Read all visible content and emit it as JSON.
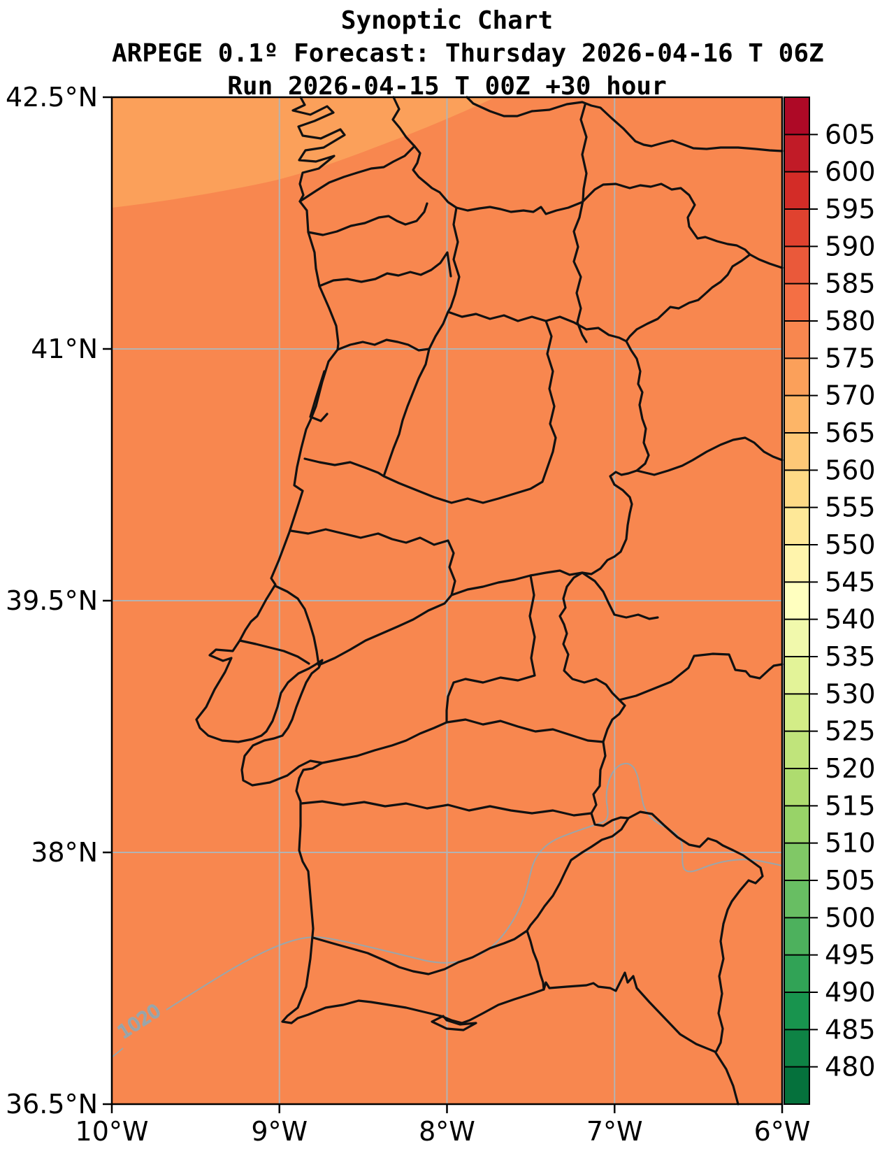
{
  "figure": {
    "title": "Synoptic Chart",
    "subtitle": "ARPEGE 0.1º Forecast: Thursday 2026-04-16 T 06Z",
    "run_info": "Run 2026-04-15 T 00Z +30 hour"
  },
  "chart_data": {
    "type": "heatmap",
    "description": "Filled-contour synoptic map of Portugal and western Spain (10W-6W, 36.5N-42.5N). Almost the whole domain lies in the 575-580 color band; a lighter 570-575 band covers the northwest corner. A gray isobar labelled 1020 arcs across the south. Black lines are coastline, Portugal-Spain border and district/province boundaries.",
    "title": "Synoptic Chart",
    "subtitle": "ARPEGE 0.1º Forecast: Thursday 2026-04-16 T 06Z",
    "run_line": "Run 2026-04-15 T 00Z +30 hour",
    "x_axis": {
      "tick_labels": [
        "10°W",
        "9°W",
        "8°W",
        "7°W",
        "6°W"
      ],
      "tick_lons": [
        -10,
        -9,
        -8,
        -7,
        -6
      ],
      "range_lon": [
        -10,
        -6
      ],
      "grid": true
    },
    "y_axis": {
      "tick_labels": [
        "42.5°N",
        "41°N",
        "39.5°N",
        "38°N",
        "36.5°N"
      ],
      "tick_lats": [
        42.5,
        41,
        39.5,
        38,
        36.5
      ],
      "range_lat": [
        36.5,
        42.5
      ],
      "grid": true
    },
    "colorbar": {
      "position": "right",
      "colormap": "RdYlGn reversed",
      "domain_min": 475,
      "domain_max": 610,
      "step": 5,
      "tick_labels": [
        605,
        600,
        595,
        590,
        585,
        580,
        575,
        570,
        565,
        560,
        555,
        550,
        545,
        540,
        535,
        530,
        525,
        520,
        515,
        510,
        505,
        500,
        495,
        490,
        485,
        480
      ]
    },
    "field_regions": [
      {
        "band": "575-580",
        "value_mid": 577.5,
        "area": "entire domain except northwest corner"
      },
      {
        "band": "570-575",
        "value_mid": 572.5,
        "area": "northwest corner of domain"
      }
    ],
    "isobars": [
      {
        "label": "1020",
        "location": "arcs across southern Portugal from lower-left edge to right edge"
      }
    ]
  },
  "colors": {
    "grid": "#b3b3b3",
    "boundary": "#111111",
    "isobar": "#9aa6ab",
    "isobar_label": "#8f9a9f",
    "frame": "#000000",
    "background": "#ffffff"
  }
}
